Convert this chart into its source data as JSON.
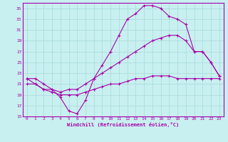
{
  "xlabel": "Windchill (Refroidissement éolien,°C)",
  "bg_color": "#c8f0f0",
  "grid_color": "#a8d8d8",
  "line_color": "#aa00aa",
  "xlim": [
    -0.5,
    23.5
  ],
  "ylim": [
    15,
    36
  ],
  "yticks": [
    15,
    17,
    19,
    21,
    23,
    25,
    27,
    29,
    31,
    33,
    35
  ],
  "xticks": [
    0,
    1,
    2,
    3,
    4,
    5,
    6,
    7,
    8,
    9,
    10,
    11,
    12,
    13,
    14,
    15,
    16,
    17,
    18,
    19,
    20,
    21,
    22,
    23
  ],
  "line1_x": [
    0,
    1,
    2,
    3,
    4,
    5,
    6,
    7,
    8,
    9,
    10,
    11,
    12,
    13,
    14,
    15,
    16,
    17,
    18,
    19,
    20,
    21,
    22,
    23
  ],
  "line1_y": [
    22,
    22,
    21,
    20,
    18.5,
    16,
    15.5,
    18,
    22,
    24.5,
    27,
    30,
    33,
    34,
    35.5,
    35.5,
    35,
    33.5,
    33,
    32,
    27,
    27,
    25,
    22.5
  ],
  "line2_x": [
    0,
    1,
    2,
    3,
    4,
    5,
    6,
    7,
    8,
    9,
    10,
    11,
    12,
    13,
    14,
    15,
    16,
    17,
    18,
    19,
    20,
    21,
    22,
    23
  ],
  "line2_y": [
    22,
    21,
    20,
    20,
    19.5,
    20,
    20,
    21,
    22,
    23,
    24,
    25,
    26,
    27,
    28,
    29,
    29.5,
    30,
    30,
    29,
    27,
    27,
    25,
    22.5
  ],
  "line3_x": [
    0,
    1,
    2,
    3,
    4,
    5,
    6,
    7,
    8,
    9,
    10,
    11,
    12,
    13,
    14,
    15,
    16,
    17,
    18,
    19,
    20,
    21,
    22,
    23
  ],
  "line3_y": [
    21,
    21,
    20,
    19.5,
    19,
    19,
    19,
    19.5,
    20,
    20.5,
    21,
    21,
    21.5,
    22,
    22,
    22.5,
    22.5,
    22.5,
    22,
    22,
    22,
    22,
    22,
    22
  ]
}
